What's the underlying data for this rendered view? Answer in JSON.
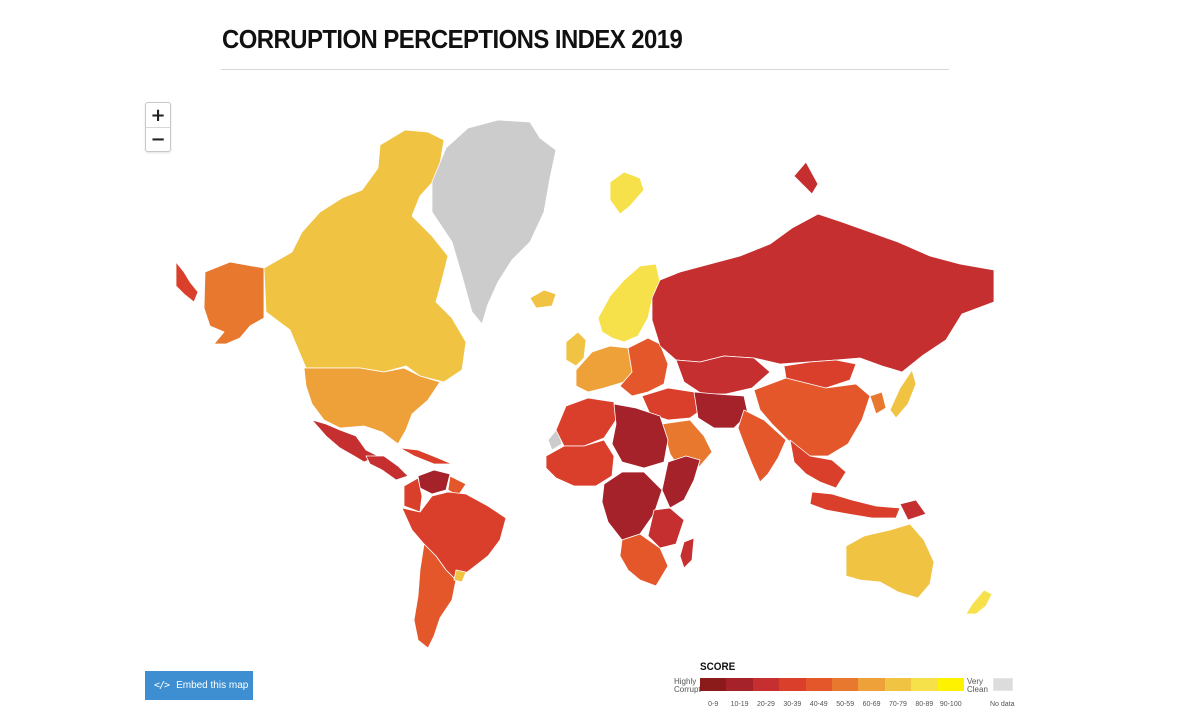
{
  "page": {
    "title": "CORRUPTION PERCEPTIONS INDEX 2019"
  },
  "zoom": {
    "in_label": "+",
    "out_label": "−"
  },
  "embed": {
    "icon": "code-icon",
    "label": "Embed this map"
  },
  "legend": {
    "title": "SCORE",
    "low_label": [
      "Highly",
      "Corrupt"
    ],
    "high_label": [
      "Very",
      "Clean"
    ],
    "bins": [
      {
        "label": "0-9",
        "color": "#8b1a1a"
      },
      {
        "label": "10-19",
        "color": "#a5222a"
      },
      {
        "label": "20-29",
        "color": "#c62f2f"
      },
      {
        "label": "30-39",
        "color": "#d93f2a"
      },
      {
        "label": "40-49",
        "color": "#e3572b"
      },
      {
        "label": "50-59",
        "color": "#e9782f"
      },
      {
        "label": "60-69",
        "color": "#eea139"
      },
      {
        "label": "70-79",
        "color": "#f0c342"
      },
      {
        "label": "80-89",
        "color": "#f6e14a"
      },
      {
        "label": "90-100",
        "color": "#fff200"
      }
    ],
    "no_data_label": "No data",
    "no_data_color": "#cccccc"
  },
  "map": {
    "regions": [
      {
        "name": "alaska",
        "bin": "50-59"
      },
      {
        "name": "aleutians",
        "bin": "30-39"
      },
      {
        "name": "canada",
        "bin": "70-79"
      },
      {
        "name": "greenland",
        "bin": "No data"
      },
      {
        "name": "usa",
        "bin": "60-69"
      },
      {
        "name": "mexico",
        "bin": "20-29"
      },
      {
        "name": "central-america",
        "bin": "20-29"
      },
      {
        "name": "caribbean",
        "bin": "30-39"
      },
      {
        "name": "venezuela",
        "bin": "10-19"
      },
      {
        "name": "colombia",
        "bin": "30-39"
      },
      {
        "name": "south-america",
        "bin": "30-39"
      },
      {
        "name": "guyana-suriname",
        "bin": "40-49"
      },
      {
        "name": "argentina-chile",
        "bin": "40-49"
      },
      {
        "name": "uruguay",
        "bin": "70-79"
      },
      {
        "name": "iceland",
        "bin": "70-79"
      },
      {
        "name": "svalbard",
        "bin": "80-89"
      },
      {
        "name": "scandinavia",
        "bin": "80-89"
      },
      {
        "name": "uk",
        "bin": "70-79"
      },
      {
        "name": "western-europe",
        "bin": "60-69"
      },
      {
        "name": "eastern-europe",
        "bin": "40-49"
      },
      {
        "name": "russia",
        "bin": "20-29"
      },
      {
        "name": "central-asia",
        "bin": "20-29"
      },
      {
        "name": "china",
        "bin": "40-49"
      },
      {
        "name": "mongolia",
        "bin": "30-39"
      },
      {
        "name": "middle-east",
        "bin": "30-39"
      },
      {
        "name": "iran-afghanistan",
        "bin": "10-19"
      },
      {
        "name": "arabia",
        "bin": "50-59"
      },
      {
        "name": "india",
        "bin": "40-49"
      },
      {
        "name": "southeast-asia",
        "bin": "30-39"
      },
      {
        "name": "indonesia",
        "bin": "30-39"
      },
      {
        "name": "papua",
        "bin": "20-29"
      },
      {
        "name": "japan",
        "bin": "70-79"
      },
      {
        "name": "korea",
        "bin": "50-59"
      },
      {
        "name": "australia",
        "bin": "70-79"
      },
      {
        "name": "new-zealand",
        "bin": "80-89"
      },
      {
        "name": "north-africa",
        "bin": "30-39"
      },
      {
        "name": "libya-sudan",
        "bin": "10-19"
      },
      {
        "name": "west-africa",
        "bin": "30-39"
      },
      {
        "name": "horn-of-africa",
        "bin": "10-19"
      },
      {
        "name": "central-africa",
        "bin": "10-19"
      },
      {
        "name": "east-africa",
        "bin": "20-29"
      },
      {
        "name": "southern-africa",
        "bin": "40-49"
      },
      {
        "name": "madagascar",
        "bin": "20-29"
      },
      {
        "name": "western-sahara",
        "bin": "No data"
      }
    ]
  }
}
